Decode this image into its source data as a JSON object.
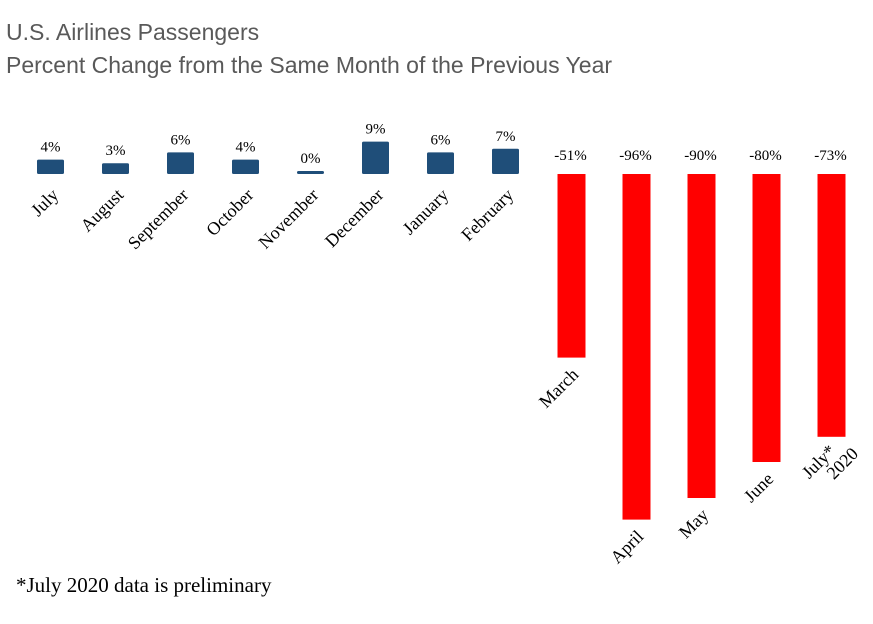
{
  "chart_data": {
    "type": "bar",
    "title": "U.S. Airlines Passengers",
    "subtitle": "Percent Change from the Same Month of the Previous Year",
    "categories": [
      "July",
      "August",
      "September",
      "October",
      "November",
      "December",
      "January",
      "February",
      "March",
      "April",
      "May",
      "June",
      "July* 2020"
    ],
    "values": [
      4,
      3,
      6,
      4,
      0,
      9,
      6,
      7,
      -51,
      -96,
      -90,
      -80,
      -73
    ],
    "data_labels": [
      "4%",
      "3%",
      "6%",
      "4%",
      "0%",
      "9%",
      "6%",
      "7%",
      "-51%",
      "-96%",
      "-90%",
      "-80%",
      "-73%"
    ],
    "colors": {
      "positive": "#1F4E79",
      "negative": "#FF0000"
    },
    "xlabel": "",
    "ylabel": "",
    "grid": false,
    "legend": "none",
    "footnote": "*July 2020 data is preliminary"
  }
}
